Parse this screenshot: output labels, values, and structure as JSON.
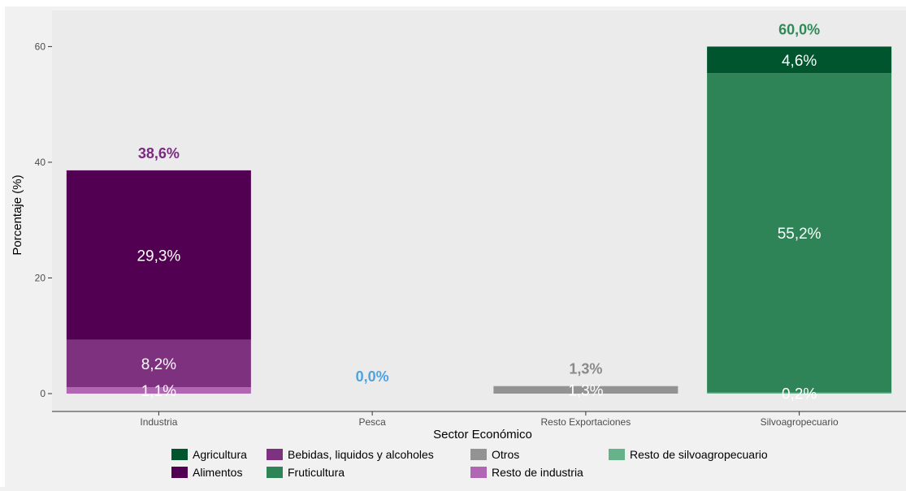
{
  "chart_data": {
    "type": "bar",
    "stacked": true,
    "title": "",
    "xlabel": "Sector Económico",
    "ylabel": "Porcentaje (%)",
    "ylim": [
      0,
      63
    ],
    "yticks": [
      0,
      20,
      40,
      60
    ],
    "grid": false,
    "legend_position": "bottom",
    "categories": [
      "Industria",
      "Pesca",
      "Resto Exportaciones",
      "Silvoagropecuario"
    ],
    "totals": [
      {
        "category": "Industria",
        "value": 38.6,
        "label": "38,6%",
        "color": "#7b2a82"
      },
      {
        "category": "Pesca",
        "value": 0.0,
        "label": "0,0%",
        "color": "#4fa3e0"
      },
      {
        "category": "Resto Exportaciones",
        "value": 1.3,
        "label": "1,3%",
        "color": "#8a8a8a"
      },
      {
        "category": "Silvoagropecuario",
        "value": 60.0,
        "label": "60,0%",
        "color": "#2e8b57"
      }
    ],
    "segments": [
      {
        "category": "Industria",
        "series": "Resto de industria",
        "value": 1.1,
        "label": "1,1%"
      },
      {
        "category": "Industria",
        "series": "Bebidas, liquidos y alcoholes",
        "value": 8.2,
        "label": "8,2%"
      },
      {
        "category": "Industria",
        "series": "Alimentos",
        "value": 29.3,
        "label": "29,3%"
      },
      {
        "category": "Resto Exportaciones",
        "series": "Otros",
        "value": 1.3,
        "label": "1,3%"
      },
      {
        "category": "Silvoagropecuario",
        "series": "Resto de silvoagropecuario",
        "value": 0.2,
        "label": "0,2%"
      },
      {
        "category": "Silvoagropecuario",
        "series": "Fruticultura",
        "value": 55.2,
        "label": "55,2%"
      },
      {
        "category": "Silvoagropecuario",
        "series": "Agricultura",
        "value": 4.6,
        "label": "4,6%"
      }
    ],
    "series": [
      {
        "name": "Agricultura",
        "color": "#00542e"
      },
      {
        "name": "Alimentos",
        "color": "#520052"
      },
      {
        "name": "Bebidas, liquidos y alcoholes",
        "color": "#7e317f"
      },
      {
        "name": "Fruticultura",
        "color": "#2e8357"
      },
      {
        "name": "Otros",
        "color": "#939393"
      },
      {
        "name": "Resto de industria",
        "color": "#b066b2"
      },
      {
        "name": "Resto de silvoagropecuario",
        "color": "#66b28b"
      }
    ],
    "legend_rows": [
      [
        "Agricultura",
        "Bebidas, liquidos y alcoholes",
        "Otros",
        "Resto de silvoagropecuario"
      ],
      [
        "Alimentos",
        "Fruticultura",
        "Resto de industria"
      ]
    ],
    "panel_background": "#ebebeb",
    "page_background": "#f1f1f1"
  }
}
